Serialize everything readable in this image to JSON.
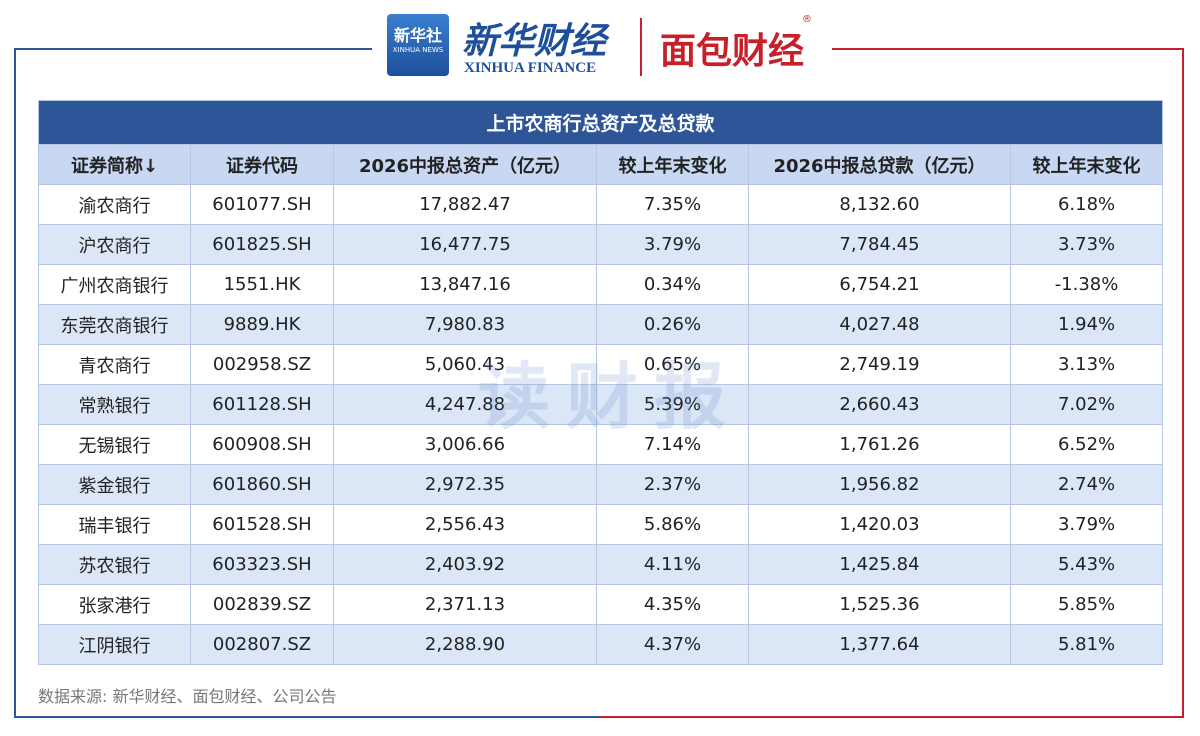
{
  "header": {
    "logo_cn": "新华社",
    "logo_en": "XINHUA NEWS",
    "brand_cn": "新华财经",
    "brand_en": "XINHUA FINANCE",
    "partner": "面包财经",
    "registered": "®"
  },
  "table": {
    "title": "上市农商行总资产及总贷款",
    "columns": [
      "证券简称↓",
      "证券代码",
      "2026中报总资产（亿元）",
      "较上年末变化",
      "2026中报总贷款（亿元）",
      "较上年末变化"
    ],
    "rows": [
      [
        "渝农商行",
        "601077.SH",
        "17,882.47",
        "7.35%",
        "8,132.60",
        "6.18%"
      ],
      [
        "沪农商行",
        "601825.SH",
        "16,477.75",
        "3.79%",
        "7,784.45",
        "3.73%"
      ],
      [
        "广州农商银行",
        "1551.HK",
        "13,847.16",
        "0.34%",
        "6,754.21",
        "-1.38%"
      ],
      [
        "东莞农商银行",
        "9889.HK",
        "7,980.83",
        "0.26%",
        "4,027.48",
        "1.94%"
      ],
      [
        "青农商行",
        "002958.SZ",
        "5,060.43",
        "0.65%",
        "2,749.19",
        "3.13%"
      ],
      [
        "常熟银行",
        "601128.SH",
        "4,247.88",
        "5.39%",
        "2,660.43",
        "7.02%"
      ],
      [
        "无锡银行",
        "600908.SH",
        "3,006.66",
        "7.14%",
        "1,761.26",
        "6.52%"
      ],
      [
        "紫金银行",
        "601860.SH",
        "2,972.35",
        "2.37%",
        "1,956.82",
        "2.74%"
      ],
      [
        "瑞丰银行",
        "601528.SH",
        "2,556.43",
        "5.86%",
        "1,420.03",
        "3.79%"
      ],
      [
        "苏农银行",
        "603323.SH",
        "2,403.92",
        "4.11%",
        "1,425.84",
        "5.43%"
      ],
      [
        "张家港行",
        "002839.SZ",
        "2,371.13",
        "4.35%",
        "1,525.36",
        "5.85%"
      ],
      [
        "江阴银行",
        "002807.SZ",
        "2,288.90",
        "4.37%",
        "1,377.64",
        "5.81%"
      ]
    ]
  },
  "watermark": "读财报",
  "source": "数据来源: 新华财经、面包财经、公司公告"
}
